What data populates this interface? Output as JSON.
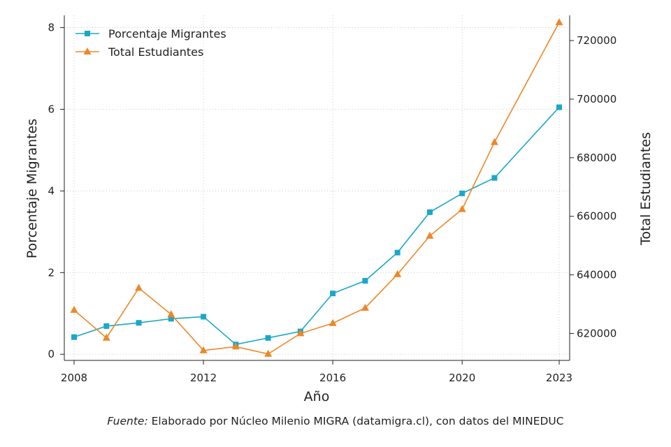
{
  "chart_data": {
    "type": "line",
    "xlabel": "Año",
    "ylabel_left": "Porcentaje Migrantes",
    "ylabel_right": "Total Estudiantes",
    "x_ticks": [
      2008,
      2012,
      2016,
      2020,
      2023
    ],
    "y_left_ticks": [
      0,
      2,
      4,
      6,
      8
    ],
    "y_right_ticks": [
      620000,
      640000,
      660000,
      680000,
      700000,
      720000
    ],
    "xlim": [
      2008,
      2023
    ],
    "ylim_left": [
      -0.15,
      8.3
    ],
    "ylim_right": [
      610800,
      728600
    ],
    "grid": true,
    "legend_position": "top-left",
    "series": [
      {
        "name": "Porcentaje Migrantes",
        "axis": "left",
        "color": "#1aa7c8",
        "marker": "square",
        "x": [
          2008,
          2009,
          2010,
          2011,
          2012,
          2013,
          2014,
          2015,
          2016,
          2017,
          2018,
          2019,
          2020,
          2021,
          2023
        ],
        "values": [
          0.42,
          0.69,
          0.77,
          0.87,
          0.92,
          0.24,
          0.4,
          0.56,
          1.49,
          1.8,
          2.49,
          3.48,
          3.94,
          4.32,
          6.05
        ]
      },
      {
        "name": "Total Estudiantes",
        "axis": "right",
        "color": "#ee8726",
        "marker": "triangle",
        "x": [
          2008,
          2009,
          2010,
          2011,
          2012,
          2013,
          2014,
          2015,
          2016,
          2017,
          2018,
          2019,
          2020,
          2021,
          2023
        ],
        "values": [
          628000,
          618500,
          635500,
          626500,
          614200,
          615500,
          613000,
          620000,
          623500,
          628700,
          640200,
          653300,
          662400,
          685300,
          726200
        ]
      }
    ]
  },
  "source": {
    "label": "Fuente:",
    "text": "Elaborado por Núcleo Milenio MIGRA (datamigra.cl), con datos del MINEDUC"
  }
}
